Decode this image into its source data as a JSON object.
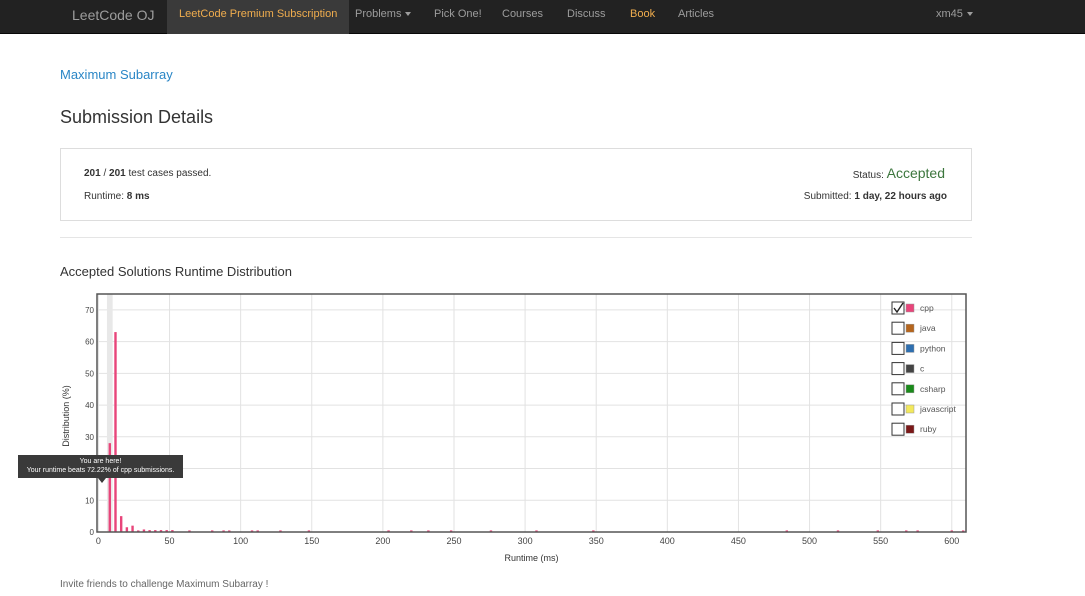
{
  "nav": {
    "brand": "LeetCode OJ",
    "premium": "LeetCode Premium Subscription",
    "problems": "Problems",
    "pick_one": "Pick One!",
    "courses": "Courses",
    "discuss": "Discuss",
    "book": "Book",
    "articles": "Articles",
    "user": "xm45"
  },
  "problem_link": "Maximum Subarray",
  "page_title": "Submission Details",
  "details": {
    "passed": "201",
    "slash": " / ",
    "total": "201",
    "passed_suffix": " test cases passed.",
    "runtime_label": "Runtime: ",
    "runtime_value": "8 ms",
    "status_label": "Status: ",
    "status_value": "Accepted",
    "submitted_label": "Submitted: ",
    "submitted_value": "1 day, 22 hours ago"
  },
  "colors": {
    "accepted": "#3c763d",
    "link": "#2a86c6",
    "premium": "#f0ad4e"
  },
  "distribution_title": "Accepted Solutions Runtime Distribution",
  "tooltip": {
    "line1": "You are here!",
    "line2": "Your runtime beats 72.22% of cpp submissions."
  },
  "footer_note": "Invite friends to challenge Maximum Subarray !",
  "chart_data": {
    "type": "bar",
    "xlabel": "Runtime (ms)",
    "ylabel": "Distribution (%)",
    "xlim": [
      -1,
      610
    ],
    "ylim": [
      0,
      75
    ],
    "xticks": [
      0,
      50,
      100,
      150,
      200,
      250,
      300,
      350,
      400,
      450,
      500,
      550,
      600
    ],
    "yticks": [
      0,
      10,
      20,
      30,
      40,
      50,
      60,
      70
    ],
    "highlight_range": [
      6,
      10
    ],
    "legend": [
      {
        "name": "cpp",
        "color": "#e8457a",
        "checked": true
      },
      {
        "name": "java",
        "color": "#b5651d",
        "checked": false
      },
      {
        "name": "python",
        "color": "#2e6fb0",
        "checked": false
      },
      {
        "name": "c",
        "color": "#444444",
        "checked": false
      },
      {
        "name": "csharp",
        "color": "#1a8a1a",
        "checked": false
      },
      {
        "name": "javascript",
        "color": "#f2e85c",
        "checked": false
      },
      {
        "name": "ruby",
        "color": "#7a1818",
        "checked": false
      }
    ],
    "series": [
      {
        "name": "cpp",
        "color": "#e8457a",
        "x": [
          8,
          12,
          16,
          20,
          24,
          28,
          32,
          36,
          40,
          44,
          48,
          52,
          64,
          80,
          88,
          92,
          108,
          112,
          128,
          148,
          204,
          220,
          232,
          248,
          276,
          308,
          348,
          484,
          520,
          548,
          568,
          576,
          600,
          608
        ],
        "y": [
          28,
          63,
          5,
          1.5,
          2,
          0.5,
          0.8,
          0.6,
          0.6,
          0.6,
          0.6,
          0.6,
          0.5,
          0.5,
          0.5,
          0.5,
          0.5,
          0.5,
          0.5,
          0.5,
          0.5,
          0.5,
          0.5,
          0.5,
          0.5,
          0.5,
          0.5,
          0.5,
          0.5,
          0.5,
          0.5,
          0.5,
          0.5,
          0.5
        ]
      }
    ]
  }
}
